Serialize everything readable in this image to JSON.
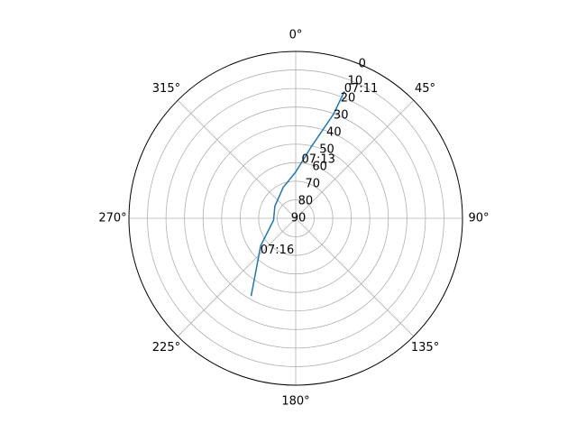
{
  "chart_data": {
    "type": "line",
    "projection": "polar",
    "theta_zero": "N",
    "theta_direction": "clockwise",
    "radial_axis": {
      "quantity": "elevation",
      "inverted": true,
      "range": [
        90,
        0
      ],
      "ticks": [
        0,
        10,
        20,
        30,
        40,
        50,
        60,
        70,
        80,
        90
      ],
      "tick_labels": [
        "0",
        "10",
        "20",
        "30",
        "40",
        "50",
        "60",
        "70",
        "80",
        "90"
      ]
    },
    "angular_axis": {
      "ticks_deg": [
        0,
        45,
        90,
        135,
        180,
        225,
        270,
        315
      ],
      "tick_labels": [
        "0°",
        "45°",
        "90°",
        "135°",
        "180°",
        "225°",
        "270°",
        "315°"
      ]
    },
    "grid": true,
    "series": [
      {
        "color": "#1f77b4",
        "points": [
          {
            "azimuth": 21,
            "elevation": 17
          },
          {
            "azimuth": 20,
            "elevation": 30
          },
          {
            "azimuth": 12,
            "elevation": 51
          },
          {
            "azimuth": 0,
            "elevation": 65
          },
          {
            "azimuth": 338,
            "elevation": 72
          },
          {
            "azimuth": 300,
            "elevation": 77
          },
          {
            "azimuth": 265,
            "elevation": 78
          },
          {
            "azimuth": 232,
            "elevation": 66
          },
          {
            "azimuth": 214,
            "elevation": 50
          },
          {
            "azimuth": 210,
            "elevation": 42
          }
        ]
      }
    ],
    "annotations": [
      {
        "text": "07:11",
        "azimuth": 21,
        "elevation": 17
      },
      {
        "text": "07:13",
        "azimuth": 6,
        "elevation": 60
      },
      {
        "text": "07:16",
        "azimuth": 225,
        "elevation": 63
      }
    ]
  }
}
